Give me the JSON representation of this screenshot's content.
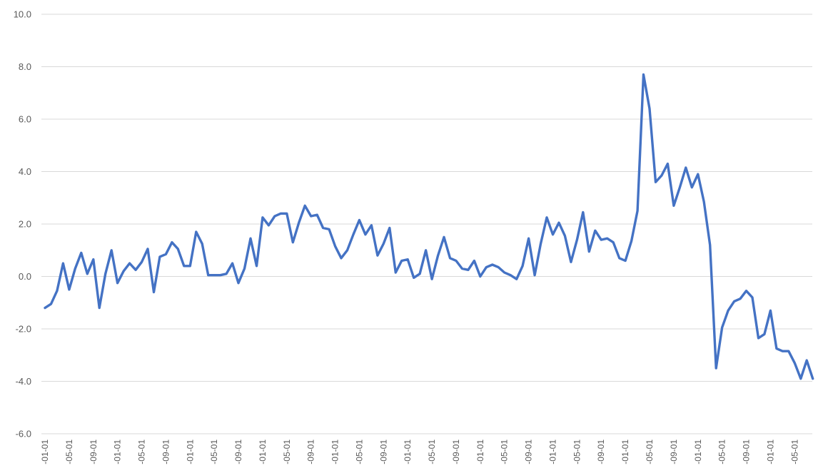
{
  "chart_data": {
    "type": "line",
    "title": "",
    "xlabel": "",
    "ylabel": "",
    "ylim": [
      -6.0,
      10.0
    ],
    "yticks": [
      "10.0",
      "8.0",
      "6.0",
      "4.0",
      "2.0",
      "0.0",
      "-2.0",
      "-4.0",
      "-6.0"
    ],
    "ytick_values": [
      10,
      8,
      6,
      4,
      2,
      0,
      -2,
      -4,
      -6
    ],
    "xticks": [
      "-01-01",
      "-05-01",
      "-09-01",
      "-01-01",
      "-05-01",
      "-09-01",
      "-01-01",
      "-05-01",
      "-09-01",
      "-01-01",
      "-05-01",
      "-09-01",
      "-01-01",
      "-05-01",
      "-09-01",
      "-01-01",
      "-05-01",
      "-09-01",
      "-01-01",
      "-05-01",
      "-09-01",
      "-01-01",
      "-05-01",
      "-09-01",
      "-01-01",
      "-05-01",
      "-09-01",
      "-01-01",
      "-05-01",
      "-09-01",
      "-01-01",
      "-05-01"
    ],
    "xtick_positions": [
      0,
      4,
      8,
      12,
      16,
      20,
      24,
      28,
      32,
      36,
      40,
      44,
      48,
      52,
      56,
      60,
      64,
      68,
      72,
      76,
      80,
      84,
      88,
      92,
      96,
      100,
      104,
      108,
      112,
      116,
      120,
      124
    ],
    "grid": true,
    "legend": "none",
    "series": [
      {
        "color": "#4472C4",
        "values": [
          -1.2,
          -1.05,
          -0.55,
          0.5,
          -0.5,
          0.3,
          0.9,
          0.1,
          0.65,
          -1.2,
          0.1,
          1.0,
          -0.25,
          0.2,
          0.5,
          0.25,
          0.55,
          1.05,
          -0.6,
          0.75,
          0.85,
          1.3,
          1.05,
          0.4,
          0.4,
          1.7,
          1.25,
          0.05,
          0.05,
          0.05,
          0.1,
          0.5,
          -0.25,
          0.3,
          1.45,
          0.4,
          2.25,
          1.95,
          2.3,
          2.4,
          2.4,
          1.3,
          2.05,
          2.7,
          2.3,
          2.35,
          1.85,
          1.8,
          1.15,
          0.7,
          1.0,
          1.6,
          2.15,
          1.6,
          1.95,
          0.8,
          1.25,
          1.85,
          0.15,
          0.6,
          0.65,
          -0.05,
          0.1,
          1.0,
          -0.1,
          0.8,
          1.5,
          0.7,
          0.6,
          0.3,
          0.25,
          0.6,
          0.0,
          0.35,
          0.45,
          0.35,
          0.15,
          0.05,
          -0.1,
          0.4,
          1.45,
          0.05,
          1.25,
          2.25,
          1.6,
          2.05,
          1.55,
          0.55,
          1.4,
          2.45,
          0.95,
          1.75,
          1.4,
          1.45,
          1.3,
          0.7,
          0.6,
          1.35,
          2.5,
          7.7,
          6.4,
          3.6,
          3.85,
          4.3,
          2.7,
          3.4,
          4.15,
          3.4,
          3.9,
          2.85,
          1.2,
          -3.5,
          -1.95,
          -1.3,
          -0.95,
          -0.85,
          -0.55,
          -0.8,
          -2.35,
          -2.2,
          -1.3,
          -2.75,
          -2.85,
          -2.85,
          -3.3,
          -3.9,
          -3.2,
          -3.9
        ]
      }
    ]
  }
}
